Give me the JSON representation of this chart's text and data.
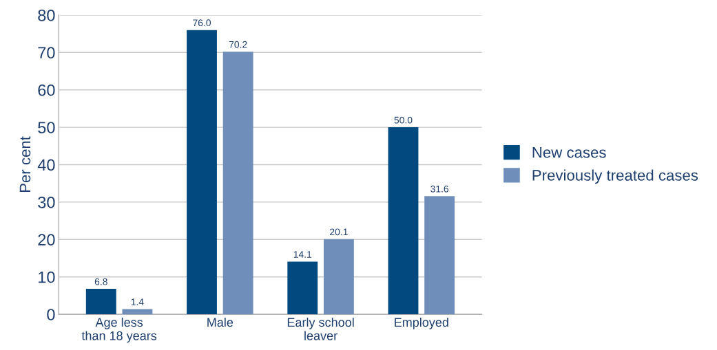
{
  "chart_data": {
    "type": "bar",
    "ylabel": "Per cent",
    "categories": [
      "Age less\nthan 18 years",
      "Male",
      "Early school\nleaver",
      "Employed"
    ],
    "series": [
      {
        "name": "New cases",
        "color": "#004a80",
        "values": [
          6.8,
          76.0,
          14.1,
          50.0
        ],
        "value_labels": [
          "6.8",
          "76.0",
          "14.1",
          "50.0"
        ]
      },
      {
        "name": "Previously treated cases",
        "color": "#6f8fba",
        "values": [
          1.4,
          70.2,
          20.1,
          31.6
        ],
        "value_labels": [
          "1.4",
          "70.2",
          "20.1",
          "31.6"
        ]
      }
    ],
    "ylim": [
      0,
      80
    ],
    "yticks": [
      0,
      10,
      20,
      30,
      40,
      50,
      60,
      70,
      80
    ],
    "grid": "y",
    "legend": "right"
  }
}
